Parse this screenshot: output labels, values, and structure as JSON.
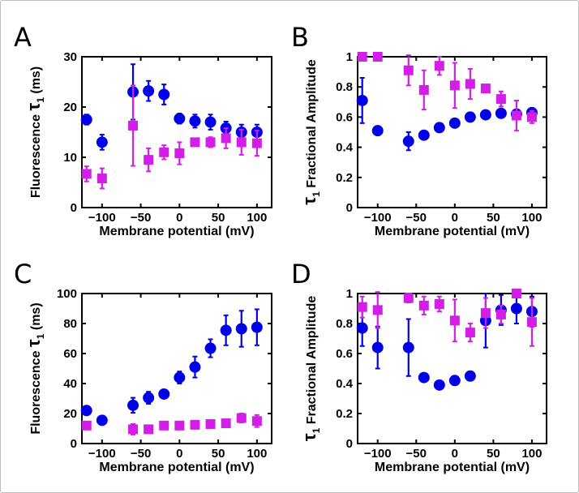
{
  "colors": {
    "blue": "#0000e6",
    "magenta": "#d21ee6",
    "axis": "#000000"
  },
  "chart_data": [
    {
      "panel": "A",
      "type": "scatter",
      "xlabel": "Membrane potential (mV)",
      "ylabel": [
        {
          "t": "Fluorescence "
        },
        {
          "t": "τ"
        },
        {
          "t": "1",
          "sub": true
        },
        {
          "t": " (ms)"
        }
      ],
      "xlim": [
        -126,
        119
      ],
      "ylim": [
        0,
        30
      ],
      "xticks": [
        -100,
        -50,
        0,
        50,
        100
      ],
      "xtick_labels": [
        "−100",
        "−50",
        "0",
        "50",
        "100"
      ],
      "yticks": [
        0,
        10,
        20,
        30
      ],
      "ytick_labels": [
        "0",
        "10",
        "20",
        "30"
      ],
      "x": [
        -120,
        -100,
        -60,
        -40,
        -20,
        0,
        20,
        40,
        60,
        80,
        100
      ],
      "series": [
        {
          "name": "blue circles",
          "marker": "circle",
          "color": "blue",
          "values": [
            17.5,
            13,
            23,
            23.2,
            22.5,
            17.7,
            17.2,
            17,
            15.8,
            15,
            15
          ],
          "errors": [
            1,
            1.5,
            5.5,
            2,
            2,
            1,
            1.3,
            1.5,
            1.3,
            1.5,
            1.5
          ]
        },
        {
          "name": "magenta squares",
          "marker": "square",
          "color": "magenta",
          "values": [
            6.7,
            5.8,
            16.3,
            9.5,
            11,
            10.8,
            13,
            13,
            13.8,
            13,
            12.8
          ],
          "errors": [
            1.5,
            2,
            8,
            2.3,
            1.4,
            2.2,
            0.4,
            1,
            2,
            2.5,
            2.5
          ]
        }
      ]
    },
    {
      "panel": "B",
      "type": "scatter",
      "xlabel": "Membrane potential (mV)",
      "ylabel": [
        {
          "t": "τ"
        },
        {
          "t": "1",
          "sub": true
        },
        {
          "t": " Fractional Amplitude"
        }
      ],
      "xlim": [
        -126,
        119
      ],
      "ylim": [
        0,
        1
      ],
      "xticks": [
        -100,
        -50,
        0,
        50,
        100
      ],
      "xtick_labels": [
        "−100",
        "−50",
        "0",
        "50",
        "100"
      ],
      "yticks": [
        0,
        0.2,
        0.4,
        0.6,
        0.8,
        1
      ],
      "ytick_labels": [
        "0",
        "0.2",
        "0.4",
        "0.6",
        "0.8",
        "1"
      ],
      "x": [
        -120,
        -100,
        -60,
        -40,
        -20,
        0,
        20,
        40,
        60,
        80,
        100
      ],
      "series": [
        {
          "name": "blue circles",
          "marker": "circle",
          "color": "blue",
          "values": [
            0.71,
            0.51,
            0.44,
            0.48,
            0.53,
            0.56,
            0.6,
            0.615,
            0.625,
            0.62,
            0.63
          ],
          "errors": [
            0.15,
            0.02,
            0.06,
            0.02,
            0.01,
            0.01,
            0.01,
            0.01,
            0.01,
            0.01,
            0.01
          ]
        },
        {
          "name": "magenta squares",
          "marker": "square",
          "color": "magenta",
          "values": [
            1,
            1,
            0.91,
            0.78,
            0.94,
            0.81,
            0.82,
            0.79,
            0.72,
            0.61,
            0.6
          ],
          "errors": [
            0,
            0,
            0.1,
            0.13,
            0.06,
            0.15,
            0.1,
            0,
            0.05,
            0.1,
            0.04
          ]
        }
      ]
    },
    {
      "panel": "C",
      "type": "scatter",
      "xlabel": "Membrane potential (mV)",
      "ylabel": [
        {
          "t": "Fluorescence "
        },
        {
          "t": "τ"
        },
        {
          "t": "1",
          "sub": true
        },
        {
          "t": " (ms)"
        }
      ],
      "xlim": [
        -126,
        119
      ],
      "ylim": [
        0,
        100
      ],
      "xticks": [
        -100,
        -50,
        0,
        50,
        100
      ],
      "xtick_labels": [
        "−100",
        "−50",
        "0",
        "50",
        "100"
      ],
      "yticks": [
        0,
        20,
        40,
        60,
        80,
        100
      ],
      "ytick_labels": [
        "0",
        "20",
        "40",
        "60",
        "80",
        "100"
      ],
      "x": [
        -120,
        -100,
        -60,
        -40,
        -20,
        0,
        20,
        40,
        60,
        80,
        100
      ],
      "series": [
        {
          "name": "blue circles",
          "marker": "circle",
          "color": "blue",
          "values": [
            22,
            15.5,
            25.5,
            30.5,
            33,
            44,
            51,
            63.5,
            75.5,
            76.5,
            77.5
          ],
          "errors": [
            1,
            1,
            5,
            4,
            2,
            4,
            7,
            6,
            10,
            12,
            12
          ]
        },
        {
          "name": "magenta squares",
          "marker": "square",
          "color": "magenta",
          "values": [
            12,
            null,
            9.5,
            9.5,
            12,
            12,
            12.5,
            13,
            13.5,
            17,
            15
          ],
          "errors": [
            2,
            0,
            3.5,
            2,
            2,
            2.5,
            2,
            2,
            2,
            3,
            4
          ]
        }
      ]
    },
    {
      "panel": "D",
      "type": "scatter",
      "xlabel": "Membrane potential (mV)",
      "ylabel": [
        {
          "t": "τ"
        },
        {
          "t": "1",
          "sub": true
        },
        {
          "t": " Fractional Amplitude"
        }
      ],
      "xlim": [
        -126,
        119
      ],
      "ylim": [
        0,
        1
      ],
      "xticks": [
        -100,
        -50,
        0,
        50,
        100
      ],
      "xtick_labels": [
        "−100",
        "−50",
        "0",
        "50",
        "100"
      ],
      "yticks": [
        0,
        0.2,
        0.4,
        0.6,
        0.8,
        1
      ],
      "ytick_labels": [
        "0",
        "0.2",
        "0.4",
        "0.6",
        "0.8",
        "1"
      ],
      "x": [
        -120,
        -100,
        -60,
        -40,
        -20,
        0,
        20,
        40,
        60,
        80,
        100
      ],
      "series": [
        {
          "name": "blue circles",
          "marker": "circle",
          "color": "blue",
          "values": [
            0.77,
            0.64,
            0.64,
            0.44,
            0.39,
            0.42,
            0.45,
            0.82,
            0.89,
            0.9,
            0.88
          ],
          "errors": [
            0.12,
            0.14,
            0.19,
            0.02,
            0.02,
            0.02,
            0.03,
            0.18,
            0.1,
            0.1,
            0.1
          ]
        },
        {
          "name": "magenta squares",
          "marker": "square",
          "color": "magenta",
          "values": [
            0.91,
            0.89,
            0.97,
            0.92,
            0.93,
            0.82,
            0.74,
            0.87,
            0.86,
            1.0,
            0.81
          ],
          "errors": [
            0.07,
            0.12,
            0.03,
            0.06,
            0.05,
            0.14,
            0.06,
            0.1,
            0.06,
            0,
            0.16
          ]
        }
      ]
    }
  ]
}
